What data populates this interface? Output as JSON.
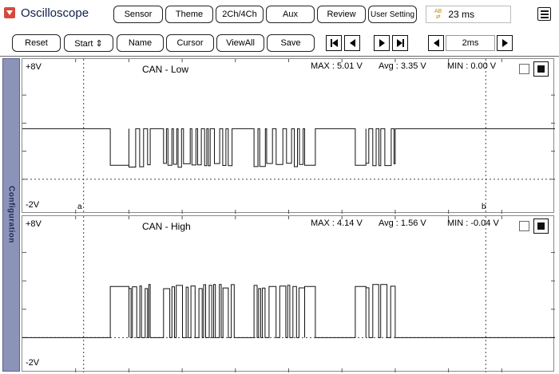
{
  "header": {
    "title": "Oscilloscope",
    "top_buttons": [
      "Sensor",
      "Theme",
      "2Ch/4Ch",
      "Aux",
      "Review",
      "User Setting"
    ],
    "time_value": "23 ms"
  },
  "toolbar": {
    "reset_label": "Reset",
    "start_label": "Start ⇕",
    "name_label": "Name",
    "cursor_label": "Cursor",
    "viewall_label": "ViewAll",
    "save_label": "Save",
    "timebase_value": "2ms"
  },
  "side_tab": {
    "label": "Configuration"
  },
  "channels": [
    {
      "title": "CAN - Low",
      "y_top": "+8V",
      "y_bottom": "-2V",
      "max": "MAX : 5.01 V",
      "avg": "Avg : 3.35 V",
      "min": "MIN : 0.00 V",
      "cursor_a": "a",
      "cursor_b": "b",
      "baseline_v": 3.6,
      "pulse_v": 1.0,
      "bursts_ms": [
        [
          4.0,
          4.8
        ],
        [
          5.3,
          8.0
        ],
        [
          8.7,
          10.6
        ],
        [
          12.9,
          14.0
        ]
      ],
      "gaps_ms": [
        [
          3.3,
          4.0
        ],
        [
          10.6,
          11.0
        ],
        [
          12.5,
          12.9
        ]
      ]
    },
    {
      "title": "CAN - High",
      "y_top": "+8V",
      "y_bottom": "-2V",
      "max": "MAX : 4.14 V",
      "avg": "Avg : 1.56 V",
      "min": "MIN : -0.04 V",
      "baseline_v": 0.0,
      "pulse_v": 3.6,
      "bursts_ms": [
        [
          4.0,
          4.8
        ],
        [
          5.3,
          8.0
        ],
        [
          8.7,
          10.6
        ],
        [
          12.9,
          14.0
        ]
      ],
      "gaps_ms": [
        [
          3.3,
          4.0
        ],
        [
          10.6,
          11.0
        ],
        [
          12.5,
          12.9
        ]
      ]
    }
  ]
}
